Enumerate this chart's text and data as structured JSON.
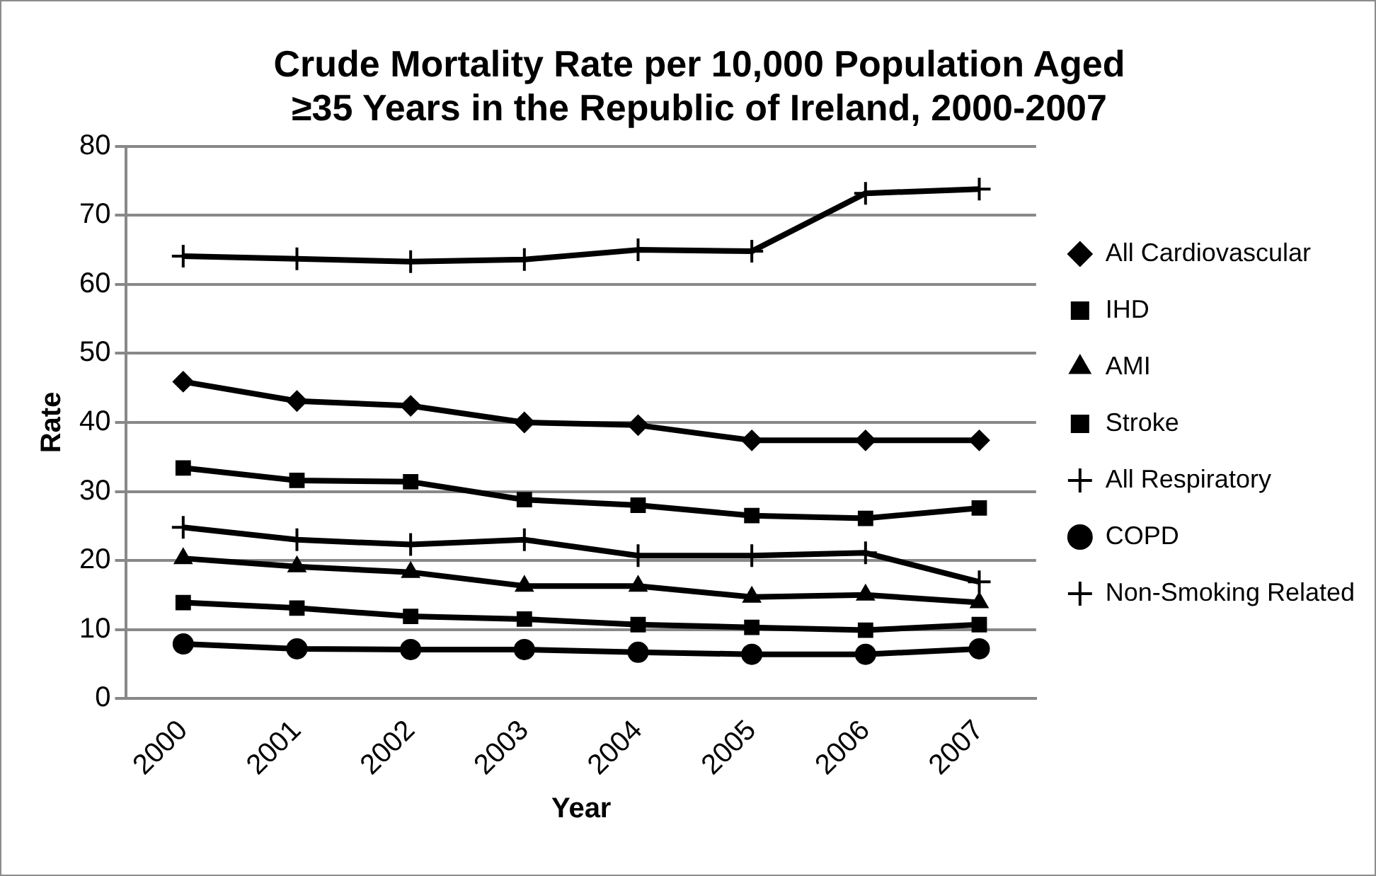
{
  "chart_data": {
    "type": "line",
    "title": "Crude Mortality Rate per 10,000 Population Aged ≥35 Years in the Republic of Ireland, 2000-2007",
    "xlabel": "Year",
    "ylabel": "Rate",
    "categories": [
      "2000",
      "2001",
      "2002",
      "2003",
      "2004",
      "2005",
      "2006",
      "2007"
    ],
    "ylim": [
      0,
      80
    ],
    "yticks": [
      0,
      10,
      20,
      30,
      40,
      50,
      60,
      70,
      80
    ],
    "grid": "y",
    "legend": "right",
    "line_style": "solid",
    "series": [
      {
        "name": "All Cardiovascular",
        "color": "#000000",
        "marker": "diamond",
        "values": [
          45.9,
          43.1,
          42.4,
          40.0,
          39.6,
          37.4,
          37.4,
          37.4
        ]
      },
      {
        "name": "IHD",
        "color": "#000000",
        "marker": "square",
        "values": [
          33.4,
          31.6,
          31.4,
          28.8,
          28.0,
          26.5,
          26.1,
          27.6
        ]
      },
      {
        "name": "AMI",
        "color": "#000000",
        "marker": "triangle",
        "values": [
          20.3,
          19.1,
          18.3,
          16.3,
          16.3,
          14.7,
          15.0,
          13.9
        ]
      },
      {
        "name": "Stroke",
        "color": "#000000",
        "marker": "square",
        "values": [
          13.9,
          13.1,
          11.9,
          11.5,
          10.7,
          10.3,
          9.9,
          10.7
        ]
      },
      {
        "name": "All Respiratory",
        "color": "#000000",
        "marker": "cross",
        "values": [
          24.8,
          23.0,
          22.3,
          23.0,
          20.7,
          20.7,
          21.1,
          16.9
        ]
      },
      {
        "name": "COPD",
        "color": "#000000",
        "marker": "circle",
        "values": [
          7.9,
          7.2,
          7.1,
          7.1,
          6.7,
          6.4,
          6.4,
          7.2
        ]
      },
      {
        "name": "Non-Smoking Related",
        "color": "#000000",
        "marker": "cross",
        "values": [
          64.1,
          63.7,
          63.3,
          63.6,
          65.0,
          64.8,
          73.2,
          73.8
        ]
      }
    ]
  }
}
